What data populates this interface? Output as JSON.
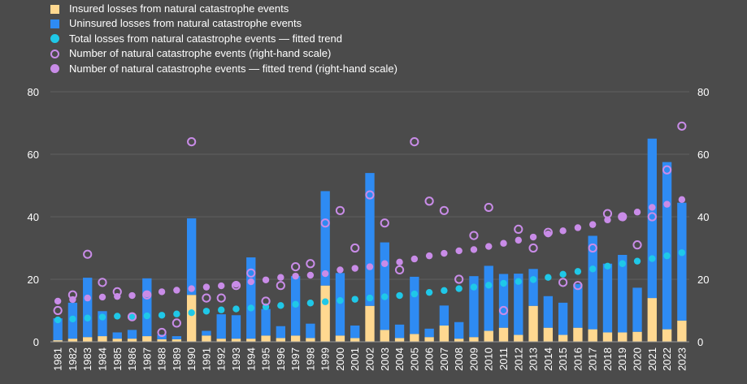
{
  "chart_data": {
    "type": "bar",
    "title": "",
    "xlabel": "",
    "ylabel": "",
    "ylim": [
      0,
      80
    ],
    "y2lim": [
      0,
      80
    ],
    "yticks": [
      "0",
      "20",
      "40",
      "60",
      "80"
    ],
    "y2ticks": [
      "0",
      "20",
      "40",
      "60",
      "80"
    ],
    "legend": [
      {
        "key": "insured",
        "label": "Insured losses from natural catastrophe events",
        "color": "#ffd890"
      },
      {
        "key": "uninsured",
        "label": "Uninsured losses from natural catastrophe events",
        "color": "#2e8bf3"
      },
      {
        "key": "total_trend",
        "label": "Total losses from natural catastrophe events — fitted trend",
        "color": "#1fc8e8"
      },
      {
        "key": "events",
        "label": "Number of natural catastrophe events (right-hand scale)",
        "color": "#c98ce8"
      },
      {
        "key": "events_trend",
        "label": "Number of natural catastrophe events — fitted trend (right-hand scale)",
        "color": "#c98ce8"
      }
    ],
    "categories": [
      "1981",
      "1982",
      "1983",
      "1984",
      "1985",
      "1986",
      "1987",
      "1988",
      "1989",
      "1990",
      "1991",
      "1992",
      "1993",
      "1994",
      "1995",
      "1996",
      "1997",
      "1998",
      "1999",
      "2000",
      "2001",
      "2002",
      "2003",
      "2004",
      "2005",
      "2006",
      "2007",
      "2008",
      "2009",
      "2010",
      "2011",
      "2012",
      "2013",
      "2014",
      "2015",
      "2016",
      "2017",
      "2018",
      "2019",
      "2020",
      "2021",
      "2022",
      "2023"
    ],
    "series": [
      {
        "name": "Insured losses from natural catastrophe events",
        "type": "stacked-bar",
        "values": [
          0.5,
          1,
          1.5,
          1.8,
          1,
          1,
          1.8,
          0.8,
          0.8,
          15,
          2,
          1,
          1,
          1,
          2,
          1.2,
          2,
          1.2,
          18,
          2,
          1.2,
          11.5,
          3.8,
          1.2,
          2.5,
          1.5,
          5.2,
          1,
          1.5,
          3.5,
          4.5,
          2.2,
          11.5,
          4.5,
          2.2,
          4.5,
          4,
          3,
          3,
          3.2,
          14,
          4,
          6.8
        ]
      },
      {
        "name": "Uninsured losses from natural catastrophe events",
        "type": "stacked-bar",
        "values": [
          7,
          11.5,
          19,
          8,
          2,
          2.8,
          18.5,
          1.5,
          1,
          24.5,
          1.5,
          7.8,
          7.5,
          26,
          8.5,
          3.8,
          19,
          4.6,
          30.2,
          20,
          4,
          42.5,
          28,
          4.3,
          18.3,
          2.7,
          6.4,
          5.3,
          19.5,
          20.8,
          17.2,
          19.6,
          11.8,
          10.1,
          10.3,
          14,
          29.9,
          22,
          24.8,
          14.1,
          51,
          53.5,
          37.7
        ]
      },
      {
        "name": "Total losses from natural catastrophe events — fitted trend",
        "type": "dot",
        "values": [
          7,
          7.3,
          7.6,
          7.9,
          8.2,
          8.1,
          8.3,
          8.5,
          8.9,
          9.3,
          9.8,
          10.2,
          10.5,
          10.8,
          11.2,
          11.6,
          12,
          12.4,
          12.8,
          13.2,
          13.6,
          14,
          14.4,
          14.8,
          15.3,
          15.8,
          16.4,
          17,
          17.5,
          18.1,
          18.7,
          19.3,
          19.9,
          20.6,
          21.6,
          22.5,
          23.3,
          24.2,
          25,
          25.8,
          26.6,
          27.5,
          28.5
        ]
      },
      {
        "name": "Number of natural catastrophe events (right-hand scale)",
        "type": "ring",
        "values": [
          10,
          15,
          28,
          19,
          16,
          8,
          15,
          3,
          6,
          64,
          14,
          14,
          18,
          22,
          13,
          18,
          24,
          25,
          38,
          42,
          30,
          47,
          38,
          23,
          64,
          45,
          42,
          20,
          34,
          43,
          10,
          36,
          30,
          35,
          19,
          18,
          30,
          41,
          40,
          31,
          40,
          55,
          69
        ]
      },
      {
        "name": "Number of natural catastrophe events — fitted trend (right-hand scale)",
        "type": "dot",
        "values": [
          13,
          13.5,
          14,
          14.3,
          14.5,
          14.8,
          15.3,
          16,
          16.5,
          17,
          17.5,
          17.9,
          18.4,
          19.2,
          19.8,
          20.6,
          21,
          21.3,
          21.8,
          23,
          23.5,
          24,
          25,
          25.5,
          26.5,
          27.5,
          28.3,
          29.1,
          29.5,
          30.5,
          31.5,
          32.5,
          33.5,
          34.5,
          35.5,
          36.5,
          37.5,
          39,
          40,
          41.5,
          43,
          44,
          45.5
        ]
      }
    ]
  }
}
